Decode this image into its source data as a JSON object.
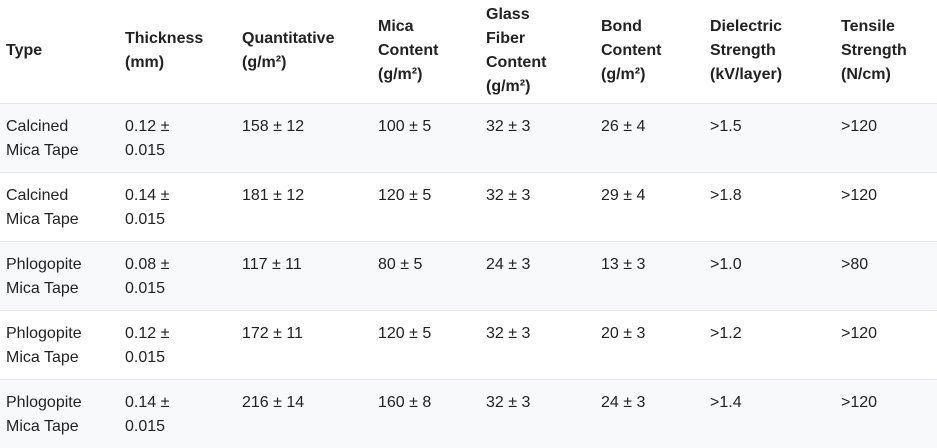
{
  "table": {
    "header": [
      "Type",
      "Thickness (mm)",
      "Quantitative (g/m²)",
      "Mica Content (g/m²)",
      "Glass Fiber Content (g/m²)",
      "Bond Content (g/m²)",
      "Dielectric Strength (kV/layer)",
      "Tensile Strength (N/cm)"
    ],
    "rows": [
      [
        "Calcined Mica Tape",
        "0.12 ± 0.015",
        "158 ± 12",
        "100 ± 5",
        "32 ± 3",
        "26 ± 4",
        ">1.5",
        ">120"
      ],
      [
        "Calcined Mica Tape",
        "0.14 ± 0.015",
        "181 ± 12",
        "120 ± 5",
        "32 ± 3",
        "29 ± 4",
        ">1.8",
        ">120"
      ],
      [
        "Phlogopite Mica Tape",
        "0.08 ± 0.015",
        "117 ± 11",
        "80 ± 5",
        "24 ± 3",
        "13 ± 3",
        ">1.0",
        ">80"
      ],
      [
        "Phlogopite Mica Tape",
        "0.12 ± 0.015",
        "172 ± 11",
        "120 ± 5",
        "32 ± 3",
        "20 ± 3",
        ">1.2",
        ">120"
      ],
      [
        "Phlogopite Mica Tape",
        "0.14 ± 0.015",
        "216 ± 14",
        "160 ± 8",
        "32 ± 3",
        "24 ± 3",
        ">1.4",
        ">120"
      ]
    ]
  }
}
